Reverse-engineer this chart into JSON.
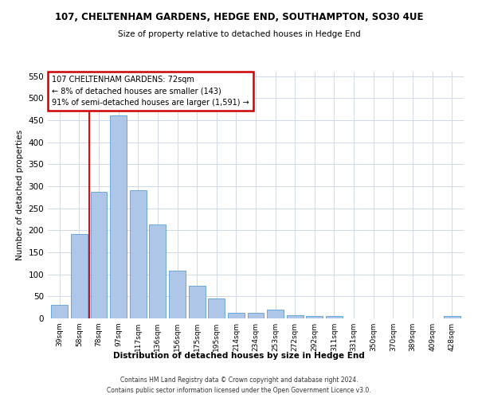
{
  "title": "107, CHELTENHAM GARDENS, HEDGE END, SOUTHAMPTON, SO30 4UE",
  "subtitle": "Size of property relative to detached houses in Hedge End",
  "xlabel": "Distribution of detached houses by size in Hedge End",
  "ylabel": "Number of detached properties",
  "categories": [
    "39sqm",
    "58sqm",
    "78sqm",
    "97sqm",
    "117sqm",
    "136sqm",
    "156sqm",
    "175sqm",
    "195sqm",
    "214sqm",
    "234sqm",
    "253sqm",
    "272sqm",
    "292sqm",
    "311sqm",
    "331sqm",
    "350sqm",
    "370sqm",
    "389sqm",
    "409sqm",
    "428sqm"
  ],
  "values": [
    30,
    192,
    287,
    460,
    290,
    213,
    109,
    74,
    46,
    12,
    12,
    20,
    8,
    6,
    5,
    0,
    0,
    0,
    0,
    0,
    5
  ],
  "bar_color": "#aec6e8",
  "bar_edge_color": "#5a9fd4",
  "red_line_index": 2,
  "annotation_line1": "107 CHELTENHAM GARDENS: 72sqm",
  "annotation_line2": "← 8% of detached houses are smaller (143)",
  "annotation_line3": "91% of semi-detached houses are larger (1,591) →",
  "annotation_box_color": "#ffffff",
  "annotation_box_edge_color": "#cc0000",
  "footer1": "Contains HM Land Registry data © Crown copyright and database right 2024.",
  "footer2": "Contains public sector information licensed under the Open Government Licence v3.0.",
  "ylim": [
    0,
    560
  ],
  "background_color": "#ffffff",
  "grid_color": "#d0d8e8"
}
